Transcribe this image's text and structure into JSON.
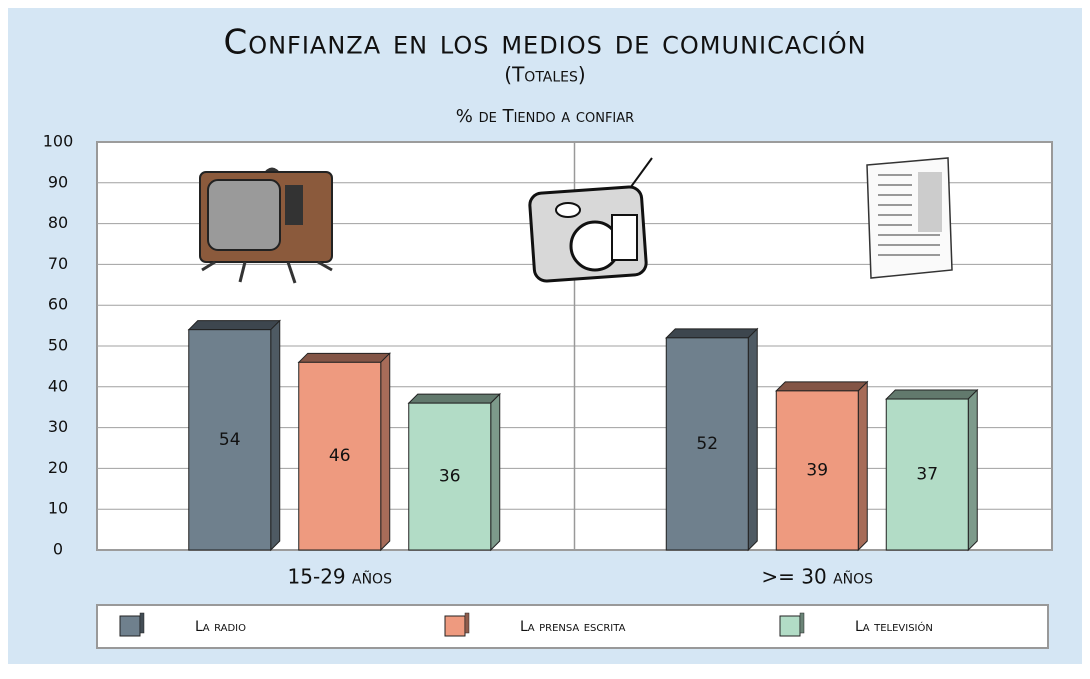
{
  "chart_data": {
    "type": "bar3d",
    "title": "Confianza en los medios de comunicación",
    "subtitle": "(Totales)",
    "y_axis_label": "% de Tiendo a confiar",
    "categories": [
      "15-29 años",
      ">= 30 años"
    ],
    "series": [
      {
        "name": "La radio",
        "color": "#6f808d",
        "values": [
          54,
          52
        ]
      },
      {
        "name": "La prensa escrita",
        "color": "#ee9a7f",
        "values": [
          46,
          39
        ]
      },
      {
        "name": "La televisión",
        "color": "#b2dcc6",
        "values": [
          36,
          37
        ]
      }
    ],
    "ylim": [
      0,
      100
    ],
    "yticks": [
      0,
      10,
      20,
      30,
      40,
      50,
      60,
      70,
      80,
      90,
      100
    ],
    "grid": true,
    "legend": "bottom"
  }
}
